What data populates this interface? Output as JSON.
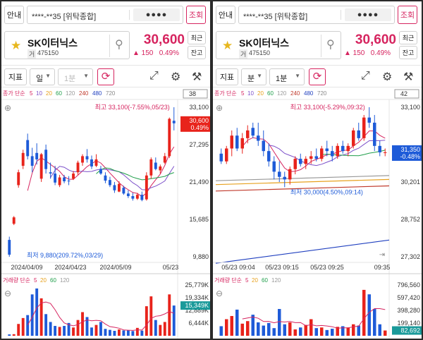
{
  "panels": [
    {
      "guide_label": "안내",
      "account_number": "****-**35 [위탁종합]",
      "password_mask": "●●●●",
      "query_label": "조회",
      "stock": {
        "name": "SK이터닉스",
        "market": "거",
        "code": "475150",
        "price": "30,600",
        "change": "▲ 150",
        "change_rate": "0.49%"
      },
      "recent_label": "최근",
      "holdings_label": "잔고",
      "indicator_label": "지표",
      "period_label": "일",
      "interval_label": "1분",
      "interval_enabled": false,
      "ma_legend": {
        "prefix": "종가 단순",
        "periods": [
          "5",
          "10",
          "20",
          "60",
          "120",
          "240",
          "480",
          "720"
        ],
        "colors": [
          "#d6245f",
          "#7b4fc9",
          "#e7a11e",
          "#1f9e4a",
          "#999999",
          "#c0392b",
          "#1f3fbf",
          "#888888"
        ]
      },
      "ma_tag": "38",
      "price_axis": [
        "33,100",
        "27,295",
        "21,490",
        "15,685",
        "9,880"
      ],
      "last_price_tag": "30,600",
      "last_rate_tag": "0.49%",
      "high_note": "최고 33,100(-7.55%,05/23)",
      "low_note": "최저 9,880(209.72%,03/29)",
      "x_labels": [
        "2024/04/09",
        "2024/04/23",
        "2024/05/09",
        "05/23"
      ],
      "vol_legend": {
        "prefix": "거래량 단순",
        "periods": [
          "5",
          "20",
          "60",
          "120"
        ],
        "colors": [
          "#d6245f",
          "#e7a11e",
          "#1f9e4a",
          "#999999"
        ]
      },
      "vol_axis": [
        "25,779K",
        "19,334K",
        "12,889K",
        "6,444K",
        "0K"
      ],
      "vol_tag": "15,349K",
      "chart_data": {
        "type": "candlestick",
        "unit": "KRW",
        "candles": [
          [
            12500,
            13000,
            9880,
            10200
          ],
          [
            15000,
            16200,
            14800,
            16000
          ],
          [
            21000,
            23400,
            20600,
            23000
          ],
          [
            24000,
            26500,
            23500,
            26000
          ],
          [
            28000,
            29000,
            25000,
            25500
          ],
          [
            25500,
            26800,
            23000,
            24000
          ],
          [
            26000,
            27500,
            24200,
            25000
          ],
          [
            22000,
            26000,
            21500,
            25800
          ],
          [
            26500,
            27300,
            22800,
            23500
          ],
          [
            23000,
            24500,
            22000,
            22800
          ],
          [
            22800,
            24000,
            21000,
            21400
          ],
          [
            21000,
            22600,
            20700,
            22200
          ],
          [
            22200,
            22600,
            21300,
            21600
          ],
          [
            21700,
            22400,
            21000,
            21600
          ],
          [
            22000,
            23200,
            21800,
            22800
          ],
          [
            23000,
            24800,
            22600,
            24500
          ],
          [
            24500,
            25800,
            24000,
            25500
          ],
          [
            25500,
            26600,
            24500,
            25000
          ],
          [
            25000,
            25600,
            23500,
            23900
          ],
          [
            24000,
            25800,
            23800,
            25000
          ],
          [
            23500,
            24000,
            22600,
            22800
          ],
          [
            22500,
            23000,
            21300,
            21700
          ],
          [
            21800,
            22300,
            20700,
            21000
          ],
          [
            21000,
            21500,
            19800,
            20200
          ],
          [
            20000,
            21600,
            19900,
            21200
          ],
          [
            20600,
            20900,
            19500,
            19700
          ],
          [
            19700,
            20200,
            19000,
            19300
          ],
          [
            19300,
            19800,
            18600,
            18900
          ],
          [
            18900,
            19800,
            18700,
            19500
          ],
          [
            19500,
            20000,
            18500,
            18700
          ],
          [
            18800,
            23000,
            18600,
            22500
          ],
          [
            22500,
            25300,
            22000,
            25000
          ],
          [
            24500,
            25300,
            23300,
            23500
          ],
          [
            23300,
            24200,
            22800,
            23900
          ],
          [
            24500,
            26000,
            24300,
            25500
          ],
          [
            25500,
            31500,
            25200,
            31300
          ],
          [
            31000,
            33100,
            29500,
            30600
          ]
        ],
        "volume_k": [
          700,
          800,
          6000,
          9000,
          10500,
          21000,
          24000,
          19000,
          11000,
          7000,
          5000,
          4500,
          5000,
          6500,
          4200,
          8000,
          12000,
          9500,
          4200,
          5500,
          7000,
          3500,
          3000,
          2500,
          3200,
          2700,
          2800,
          2400,
          4000,
          2600,
          15000,
          20000,
          8000,
          5500,
          7000,
          21000,
          15349
        ]
      }
    },
    {
      "guide_label": "안내",
      "account_number": "****-**35 [위탁종합]",
      "password_mask": "●●●●",
      "query_label": "조회",
      "stock": {
        "name": "SK이터닉스",
        "market": "거",
        "code": "475150",
        "price": "30,600",
        "change": "▲ 150",
        "change_rate": "0.49%"
      },
      "recent_label": "최근",
      "holdings_label": "잔고",
      "indicator_label": "지표",
      "period_label": "분",
      "interval_label": "1분",
      "interval_enabled": true,
      "ma_legend": {
        "prefix": "종가 단순",
        "periods": [
          "5",
          "10",
          "20",
          "60",
          "120",
          "240",
          "480",
          "720"
        ],
        "colors": [
          "#d6245f",
          "#7b4fc9",
          "#e7a11e",
          "#1f9e4a",
          "#999999",
          "#c0392b",
          "#1f3fbf",
          "#888888"
        ]
      },
      "ma_tag": "42",
      "price_axis": [
        "33,100",
        "31,350",
        "30,201",
        "28,752",
        "27,302"
      ],
      "last_price_tag": "31,350",
      "last_rate_tag": "-0.48%",
      "high_note": "최고 33,100(-5.29%,09:32)",
      "low_note": "최저 30,000(4.50%,09:14)",
      "x_labels": [
        "05/23 09:04",
        "05/23 09:15",
        "05/23 09:25",
        "09:35"
      ],
      "vol_legend": {
        "prefix": "거래량 단순",
        "periods": [
          "5",
          "20",
          "60",
          "120"
        ],
        "colors": [
          "#d6245f",
          "#e7a11e",
          "#1f9e4a",
          "#999999"
        ]
      },
      "vol_axis": [
        "796,560",
        "597,420",
        "398,280",
        "199,140",
        "0"
      ],
      "vol_tag": "82,692",
      "chart_data": {
        "type": "candlestick",
        "unit": "KRW",
        "candles": [
          [
            31300,
            31500,
            30900,
            31000
          ],
          [
            31000,
            31600,
            30900,
            31500
          ],
          [
            31500,
            32200,
            31200,
            32000
          ],
          [
            32000,
            32300,
            31400,
            31500
          ],
          [
            31500,
            32100,
            31300,
            31900
          ],
          [
            31900,
            32400,
            31700,
            32200
          ],
          [
            32300,
            32500,
            31900,
            32000
          ],
          [
            32000,
            32500,
            31600,
            31800
          ],
          [
            31800,
            32200,
            31200,
            31400
          ],
          [
            31400,
            31700,
            30800,
            31000
          ],
          [
            31000,
            31200,
            30300,
            30600
          ],
          [
            30600,
            31000,
            30200,
            30400
          ],
          [
            30400,
            30600,
            30000,
            30300
          ],
          [
            30300,
            30800,
            30100,
            30700
          ],
          [
            30700,
            31200,
            30500,
            31100
          ],
          [
            31100,
            31300,
            30800,
            30900
          ],
          [
            30900,
            31200,
            30700,
            31100
          ],
          [
            31100,
            31400,
            30900,
            31200
          ],
          [
            31200,
            31500,
            31000,
            31100
          ],
          [
            31100,
            31600,
            31000,
            31500
          ],
          [
            31500,
            31800,
            31200,
            31400
          ],
          [
            31400,
            31600,
            31000,
            31200
          ],
          [
            31200,
            31700,
            31100,
            31600
          ],
          [
            31600,
            31800,
            31300,
            31400
          ],
          [
            31400,
            31700,
            31200,
            31600
          ],
          [
            31600,
            32300,
            31500,
            32200
          ],
          [
            32200,
            32500,
            31800,
            31900
          ],
          [
            31900,
            32800,
            31800,
            32700
          ],
          [
            32700,
            33100,
            32300,
            32500
          ],
          [
            32500,
            32800,
            31400,
            31600
          ],
          [
            31600,
            31800,
            31200,
            31350
          ],
          [
            31350,
            31500,
            31200,
            31350
          ]
        ],
        "volume": [
          150000,
          260000,
          310000,
          410000,
          190000,
          230000,
          330000,
          210000,
          160000,
          200000,
          120000,
          420000,
          180000,
          210000,
          100000,
          130000,
          170000,
          260000,
          120000,
          130000,
          90000,
          110000,
          140000,
          150000,
          130000,
          180000,
          160000,
          720000,
          650000,
          420000,
          180000,
          82692
        ]
      }
    }
  ]
}
